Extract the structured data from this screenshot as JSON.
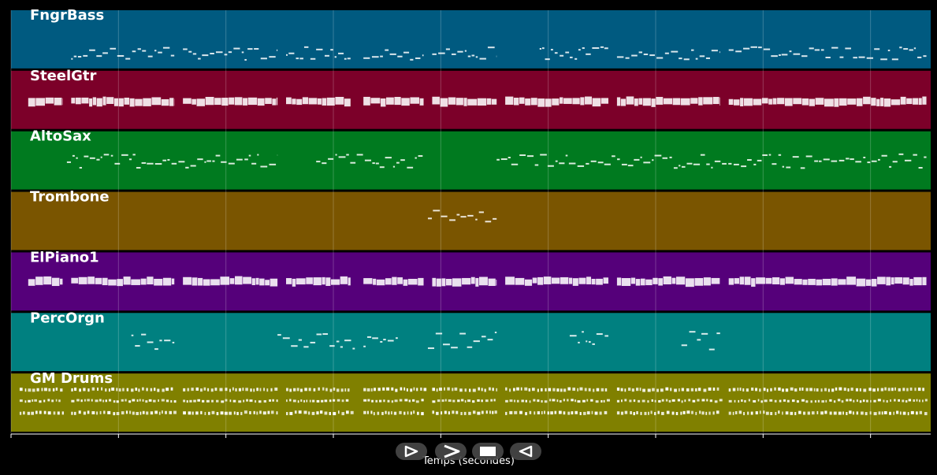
{
  "chart_data": {
    "type": "piano-roll",
    "xlabel": "Temps (secondes)",
    "xlim": [
      0,
      214
    ],
    "xticks": [
      0,
      25,
      50,
      75,
      100,
      125,
      150,
      175,
      200
    ],
    "grid": true,
    "tracks": [
      {
        "name": "FngrBass",
        "color": "#005a80",
        "style": "notes",
        "segments": [
          [
            14,
            38
          ],
          [
            40,
            62
          ],
          [
            64,
            79
          ],
          [
            82,
            96
          ],
          [
            98,
            113
          ],
          [
            123,
            139
          ],
          [
            141,
            165
          ],
          [
            167,
            213
          ]
        ],
        "pitch_range": [
          0.62,
          0.84
        ]
      },
      {
        "name": "SteelGtr",
        "color": "#7c0029",
        "style": "blocks",
        "segments": [
          [
            4,
            12
          ],
          [
            14,
            38
          ],
          [
            40,
            62
          ],
          [
            64,
            79
          ],
          [
            82,
            96
          ],
          [
            98,
            113
          ],
          [
            115,
            139
          ],
          [
            141,
            165
          ],
          [
            167,
            213
          ]
        ],
        "pitch_range": [
          0.44,
          0.62
        ]
      },
      {
        "name": "AltoSax",
        "color": "#007a1f",
        "style": "notes",
        "segments": [
          [
            13,
            62
          ],
          [
            71,
            96
          ],
          [
            113,
            213
          ]
        ],
        "pitch_range": [
          0.38,
          0.62
        ]
      },
      {
        "name": "Trombone",
        "color": "#7a5500",
        "style": "notes",
        "segments": [
          [
            97,
            113
          ]
        ],
        "pitch_range": [
          0.26,
          0.5
        ]
      },
      {
        "name": "ElPiano1",
        "color": "#55007a",
        "style": "blocks",
        "segments": [
          [
            4,
            12
          ],
          [
            14,
            38
          ],
          [
            40,
            62
          ],
          [
            64,
            79
          ],
          [
            82,
            96
          ],
          [
            98,
            113
          ],
          [
            115,
            139
          ],
          [
            141,
            165
          ],
          [
            167,
            213
          ]
        ],
        "pitch_range": [
          0.42,
          0.58
        ]
      },
      {
        "name": "PercOrgn",
        "color": "#008080",
        "style": "notes",
        "segments": [
          [
            28,
            38
          ],
          [
            62,
            80
          ],
          [
            82,
            90
          ],
          [
            97,
            113
          ],
          [
            130,
            139
          ],
          [
            156,
            165
          ]
        ],
        "pitch_range": [
          0.3,
          0.62
        ]
      },
      {
        "name": "GM Drums",
        "color": "#808000",
        "style": "drums",
        "segments": [
          [
            2,
            12
          ],
          [
            14,
            38
          ],
          [
            40,
            62
          ],
          [
            64,
            79
          ],
          [
            82,
            96
          ],
          [
            98,
            113
          ],
          [
            115,
            139
          ],
          [
            141,
            165
          ],
          [
            167,
            213
          ]
        ],
        "pitch_range": [
          0.25,
          0.65
        ]
      }
    ]
  },
  "controls": {
    "play_label": "",
    "forward_label": "",
    "stop_label": "",
    "rewind_label": ""
  }
}
